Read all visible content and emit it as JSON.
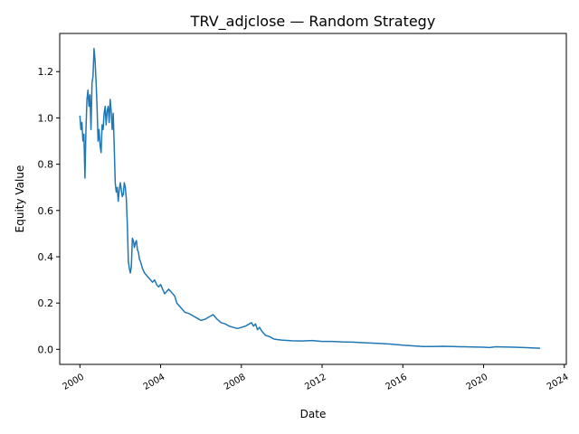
{
  "chart_data": {
    "type": "line",
    "title": "TRV_adjclose — Random Strategy",
    "xlabel": "Date",
    "ylabel": "Equity Value",
    "xlim": [
      1999.0,
      2024.1
    ],
    "ylim": [
      -0.065,
      1.365
    ],
    "x_ticks": [
      2000,
      2004,
      2008,
      2012,
      2016,
      2020,
      2024
    ],
    "y_ticks": [
      0.0,
      0.2,
      0.4,
      0.6,
      0.8,
      1.0,
      1.2
    ],
    "y_tick_labels": [
      "0.0",
      "0.2",
      "0.4",
      "0.6",
      "0.8",
      "1.0",
      "1.2"
    ],
    "grid": false,
    "line_color": "#1f77b4",
    "series": [
      {
        "x": [
          2000.0,
          2000.05,
          2000.1,
          2000.15,
          2000.2,
          2000.25,
          2000.3,
          2000.35,
          2000.4,
          2000.45,
          2000.5,
          2000.55,
          2000.6,
          2000.65,
          2000.7,
          2000.75,
          2000.8,
          2000.85,
          2000.9,
          2000.95,
          2001.0,
          2001.05,
          2001.1,
          2001.15,
          2001.2,
          2001.25,
          2001.3,
          2001.35,
          2001.4,
          2001.45,
          2001.5,
          2001.55,
          2001.6,
          2001.65,
          2001.7,
          2001.75,
          2001.8,
          2001.85,
          2001.9,
          2001.95,
          2002.0,
          2002.05,
          2002.1,
          2002.15,
          2002.2,
          2002.25,
          2002.3,
          2002.35,
          2002.4,
          2002.45,
          2002.5,
          2002.55,
          2002.6,
          2002.65,
          2002.7,
          2002.75,
          2002.8,
          2002.85,
          2002.9,
          2002.95,
          2003.0,
          2003.1,
          2003.2,
          2003.3,
          2003.4,
          2003.5,
          2003.6,
          2003.7,
          2003.8,
          2003.9,
          2004.0,
          2004.1,
          2004.2,
          2004.3,
          2004.4,
          2004.5,
          2004.6,
          2004.7,
          2004.8,
          2004.9,
          2005.0,
          2005.2,
          2005.4,
          2005.6,
          2005.8,
          2006.0,
          2006.2,
          2006.4,
          2006.6,
          2006.8,
          2007.0,
          2007.2,
          2007.4,
          2007.6,
          2007.8,
          2008.0,
          2008.2,
          2008.4,
          2008.5,
          2008.6,
          2008.7,
          2008.8,
          2008.9,
          2009.0,
          2009.1,
          2009.2,
          2009.4,
          2009.6,
          2009.8,
          2010.0,
          2010.5,
          2011.0,
          2011.5,
          2012.0,
          2012.5,
          2013.0,
          2013.5,
          2014.0,
          2014.5,
          2015.0,
          2015.5,
          2016.0,
          2016.5,
          2017.0,
          2017.5,
          2018.0,
          2018.5,
          2019.0,
          2019.5,
          2020.0,
          2020.3,
          2020.6,
          2021.0,
          2021.5,
          2022.0,
          2022.5,
          2022.8
        ],
        "y": [
          1.01,
          0.95,
          0.98,
          0.9,
          0.93,
          0.74,
          0.95,
          1.08,
          1.12,
          1.05,
          1.1,
          0.95,
          1.15,
          1.18,
          1.3,
          1.25,
          1.16,
          1.05,
          0.9,
          0.95,
          0.88,
          0.85,
          0.97,
          0.95,
          1.02,
          1.05,
          0.97,
          1.03,
          1.05,
          0.98,
          1.08,
          1.03,
          0.95,
          1.02,
          0.88,
          0.72,
          0.68,
          0.7,
          0.64,
          0.69,
          0.72,
          0.69,
          0.66,
          0.67,
          0.72,
          0.7,
          0.65,
          0.54,
          0.38,
          0.35,
          0.33,
          0.36,
          0.48,
          0.47,
          0.44,
          0.46,
          0.47,
          0.43,
          0.42,
          0.39,
          0.38,
          0.35,
          0.33,
          0.32,
          0.31,
          0.3,
          0.29,
          0.3,
          0.28,
          0.27,
          0.28,
          0.26,
          0.24,
          0.25,
          0.26,
          0.25,
          0.24,
          0.23,
          0.2,
          0.19,
          0.18,
          0.16,
          0.155,
          0.145,
          0.135,
          0.125,
          0.13,
          0.14,
          0.15,
          0.13,
          0.115,
          0.11,
          0.1,
          0.095,
          0.09,
          0.095,
          0.1,
          0.11,
          0.115,
          0.1,
          0.11,
          0.085,
          0.095,
          0.08,
          0.07,
          0.06,
          0.055,
          0.045,
          0.042,
          0.04,
          0.037,
          0.036,
          0.038,
          0.034,
          0.034,
          0.032,
          0.031,
          0.029,
          0.027,
          0.025,
          0.022,
          0.018,
          0.015,
          0.012,
          0.012,
          0.013,
          0.012,
          0.011,
          0.01,
          0.009,
          0.008,
          0.011,
          0.01,
          0.009,
          0.008,
          0.006,
          0.005
        ]
      }
    ]
  }
}
